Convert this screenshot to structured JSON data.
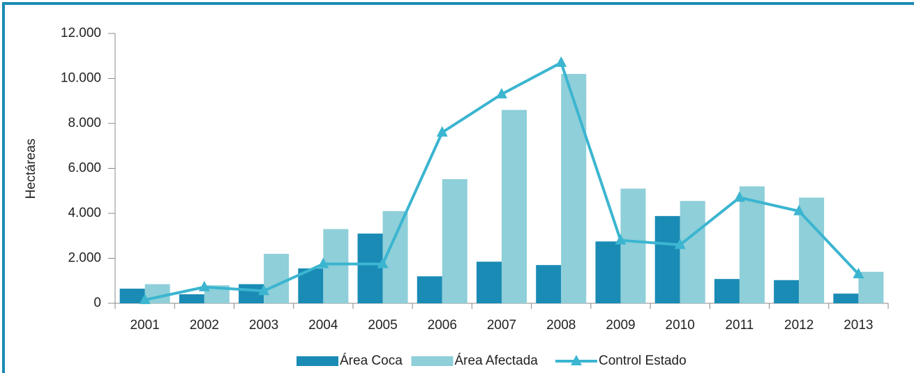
{
  "chart_data": {
    "type": "bar_line",
    "y_label": "Hectáreas",
    "categories": [
      "2001",
      "2002",
      "2003",
      "2004",
      "2005",
      "2006",
      "2007",
      "2008",
      "2009",
      "2010",
      "2011",
      "2012",
      "2013"
    ],
    "series": [
      {
        "name": "Área Coca",
        "type": "bar",
        "color": "#1a8bb5",
        "values": [
          650,
          400,
          850,
          1550,
          3100,
          1200,
          1850,
          1700,
          2750,
          3880,
          1080,
          1030,
          430
        ]
      },
      {
        "name": "Área Afectada",
        "type": "bar",
        "color": "#8ecfd9",
        "values": [
          850,
          800,
          2200,
          3300,
          4100,
          5520,
          8600,
          10200,
          5100,
          4550,
          5200,
          4700,
          1400
        ]
      },
      {
        "name": "Control Estado",
        "type": "line",
        "color": "#3bb5d0",
        "values": [
          150,
          720,
          550,
          1750,
          1750,
          7600,
          9300,
          10700,
          2800,
          2600,
          4700,
          4100,
          1300
        ]
      }
    ],
    "ylim": [
      0,
      12000
    ],
    "yticks": [
      0,
      {
        "value": 2000,
        "label": "2.000"
      },
      {
        "value": 4000,
        "label": "4.000"
      },
      {
        "value": 6000,
        "label": "6.000"
      },
      {
        "value": 8000,
        "label": "8.000"
      },
      {
        "value": 10000,
        "label": "10.000"
      },
      {
        "value": 12000,
        "label": "12.000"
      }
    ]
  }
}
